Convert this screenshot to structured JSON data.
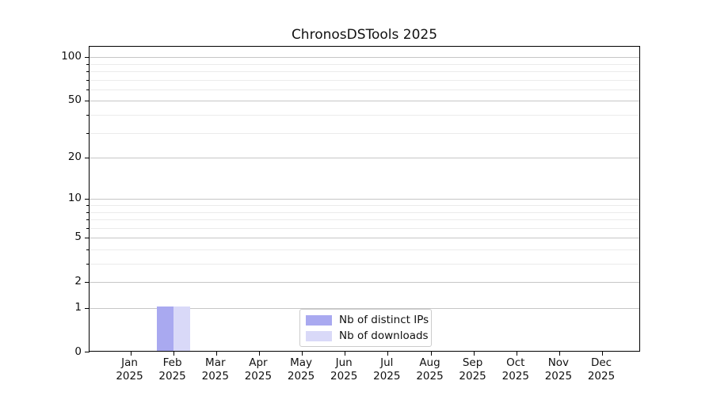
{
  "title": "ChronosDSTools 2025",
  "chart_data": {
    "type": "bar",
    "title": "ChronosDSTools 2025",
    "xlabel": "",
    "ylabel": "",
    "categories": [
      "Jan 2025",
      "Feb 2025",
      "Mar 2025",
      "Apr 2025",
      "May 2025",
      "Jun 2025",
      "Jul 2025",
      "Aug 2025",
      "Sep 2025",
      "Oct 2025",
      "Nov 2025",
      "Dec 2025"
    ],
    "series": [
      {
        "name": "Nb of distinct IPs",
        "color": "#a9a9f0",
        "values": [
          0,
          1,
          0,
          0,
          0,
          0,
          0,
          0,
          0,
          0,
          0,
          0
        ]
      },
      {
        "name": "Nb of downloads",
        "color": "#d9d9f8",
        "values": [
          0,
          1,
          0,
          0,
          0,
          0,
          0,
          0,
          0,
          0,
          0,
          0
        ]
      }
    ],
    "yscale": "log1p",
    "ylim": [
      0,
      118
    ],
    "y_tick_values": [
      0,
      1,
      2,
      5,
      10,
      20,
      50,
      100
    ],
    "y_tick_labels": [
      "0",
      "1",
      "2",
      "5",
      "10",
      "20",
      "50",
      "100"
    ],
    "y_minor_gridline_values": [
      3,
      4,
      6,
      7,
      8,
      9,
      30,
      40,
      60,
      70,
      80,
      90
    ],
    "grid": "both",
    "legend_position": "lower center"
  },
  "colors": {
    "major_grid": "#c6c6c6",
    "minor_grid": "#ebebeb",
    "spine": "#000000",
    "background": "#ffffff"
  }
}
